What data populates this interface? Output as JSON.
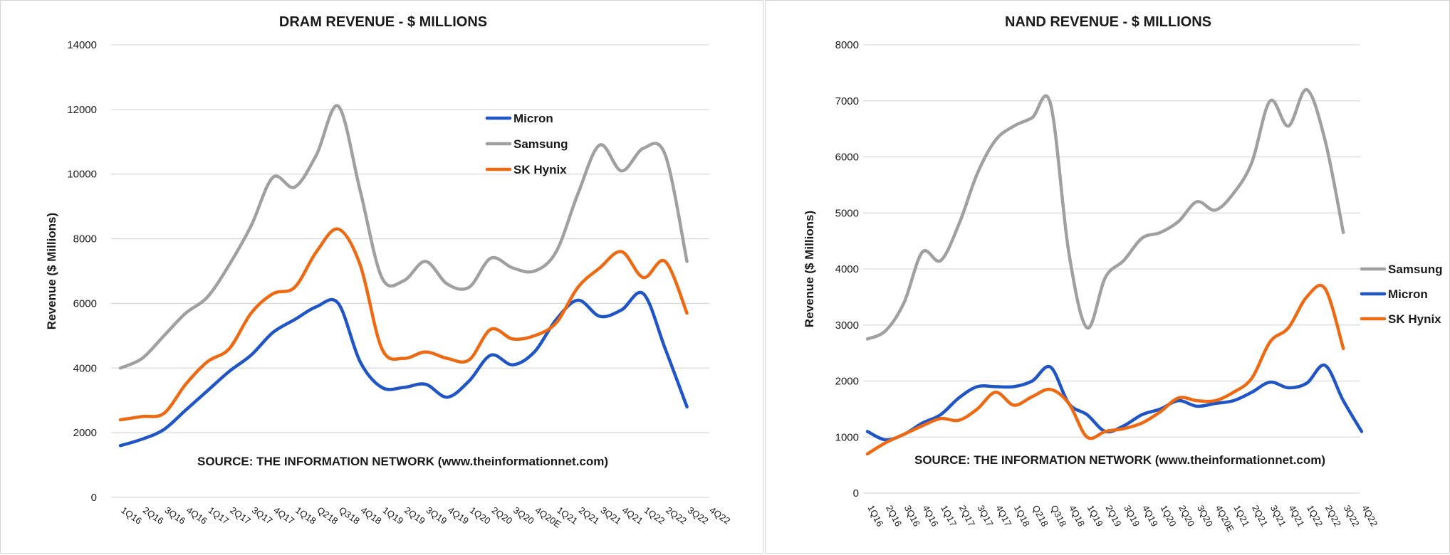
{
  "colors": {
    "micron": "#1f55c4",
    "samsung": "#a0a0a0",
    "sk_hynix": "#ee6a12",
    "grid": "#d9d9d9"
  },
  "chart_data": [
    {
      "type": "line",
      "title": "DRAM REVENUE - $ MILLIONS",
      "ylabel": "Revenue ($ Millions)",
      "xlabel": "",
      "ylim": [
        0,
        14000
      ],
      "yticks": [
        0,
        2000,
        4000,
        6000,
        8000,
        10000,
        12000,
        14000
      ],
      "grid": true,
      "legend_position": "upper-middle",
      "source": "SOURCE: THE INFORMATION NETWORK (www.theinformationnet.com)",
      "categories": [
        "1Q16",
        "2Q16",
        "3Q16",
        "4Q16",
        "1Q17",
        "2Q17",
        "3Q17",
        "4Q17",
        "1Q18",
        "Q218",
        "Q318",
        "4Q18",
        "1Q19",
        "2Q19",
        "3Q19",
        "4Q19",
        "1Q20",
        "2Q20",
        "3Q20",
        "4Q20E",
        "1Q21",
        "2Q21",
        "3Q21",
        "4Q21",
        "1Q22",
        "2Q22",
        "3Q22",
        "4Q22"
      ],
      "series": [
        {
          "name": "Micron",
          "color_key": "micron",
          "values": [
            1600,
            1800,
            2100,
            2700,
            3300,
            3900,
            4400,
            5100,
            5500,
            5900,
            6000,
            4200,
            3400,
            3400,
            3500,
            3100,
            3600,
            4400,
            4100,
            4500,
            5500,
            6100,
            5600,
            5800,
            6300,
            4600,
            2800,
            null
          ]
        },
        {
          "name": "Samsung",
          "color_key": "samsung",
          "values": [
            4000,
            4300,
            5000,
            5700,
            6200,
            7200,
            8400,
            9900,
            9600,
            10600,
            12100,
            9500,
            6800,
            6700,
            7300,
            6600,
            6500,
            7400,
            7100,
            7000,
            7600,
            9400,
            10900,
            10100,
            10800,
            10600,
            7300,
            null
          ]
        },
        {
          "name": "SK Hynix",
          "color_key": "sk_hynix",
          "values": [
            2400,
            2500,
            2600,
            3500,
            4200,
            4600,
            5700,
            6300,
            6500,
            7600,
            8300,
            7200,
            4600,
            4300,
            4500,
            4300,
            4250,
            5200,
            4900,
            5000,
            5400,
            6500,
            7100,
            7600,
            6800,
            7300,
            5700,
            null
          ]
        }
      ]
    },
    {
      "type": "line",
      "title": "NAND REVENUE - $ MILLIONS",
      "ylabel": "Revenue ($ Millions)",
      "xlabel": "",
      "ylim": [
        0,
        8000
      ],
      "yticks": [
        0,
        1000,
        2000,
        3000,
        4000,
        5000,
        6000,
        7000,
        8000
      ],
      "grid": true,
      "legend_position": "right",
      "source": "SOURCE: THE INFORMATION NETWORK (www.theinformationnet.com)",
      "categories": [
        "1Q16",
        "2Q16",
        "3Q16",
        "4Q16",
        "1Q17",
        "2Q17",
        "3Q17",
        "4Q17",
        "1Q18",
        "Q218",
        "Q318",
        "4Q18",
        "1Q19",
        "2Q19",
        "3Q19",
        "4Q19",
        "1Q20",
        "2Q20",
        "3Q20",
        "4Q20E",
        "1Q21",
        "2Q21",
        "3Q21",
        "4Q21",
        "1Q22",
        "2Q22",
        "3Q22",
        "4Q22"
      ],
      "series": [
        {
          "name": "Samsung",
          "color_key": "samsung",
          "values": [
            2750,
            2900,
            3400,
            4300,
            4150,
            4800,
            5700,
            6300,
            6550,
            6700,
            6950,
            4300,
            2950,
            3850,
            4150,
            4550,
            4650,
            4850,
            5200,
            5050,
            5350,
            5900,
            7000,
            6550,
            7200,
            6300,
            4650,
            null
          ]
        },
        {
          "name": "Micron",
          "color_key": "micron",
          "values": [
            1100,
            950,
            1050,
            1250,
            1400,
            1700,
            1900,
            1900,
            1900,
            2000,
            2250,
            1600,
            1400,
            1100,
            1200,
            1400,
            1500,
            1650,
            1550,
            1600,
            1650,
            1800,
            1980,
            1880,
            1960,
            2280,
            1650,
            1100
          ]
        },
        {
          "name": "SK Hynix",
          "color_key": "sk_hynix",
          "values": [
            700,
            900,
            1050,
            1200,
            1330,
            1300,
            1500,
            1800,
            1570,
            1720,
            1850,
            1600,
            1000,
            1100,
            1150,
            1250,
            1450,
            1700,
            1650,
            1650,
            1800,
            2050,
            2700,
            2950,
            3500,
            3650,
            2580,
            null
          ]
        }
      ]
    }
  ]
}
